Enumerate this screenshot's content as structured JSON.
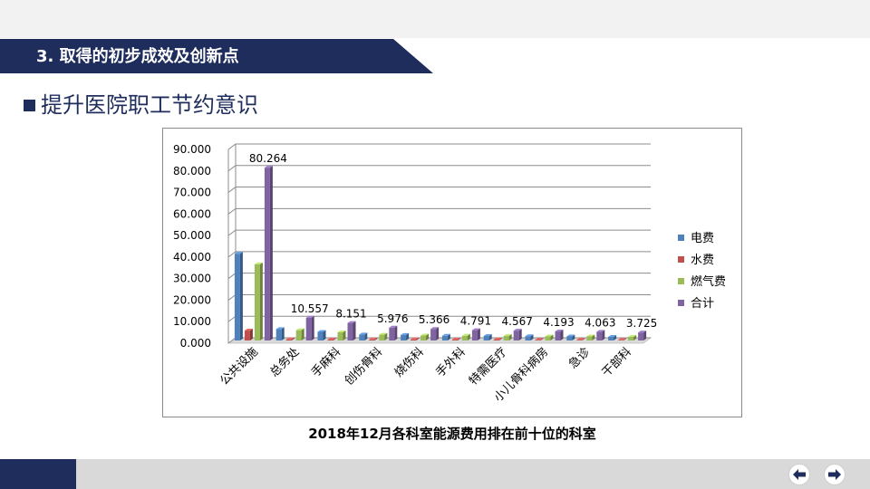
{
  "slide": {
    "title": "3. 取得的初步成效及创新点",
    "subheading": "提升医院职工节约意识",
    "caption": "2018年12月各科室能源费用排在前十位的科室"
  },
  "colors": {
    "brand_navy": "#1f2d5c",
    "electricity": "#4f81bd",
    "water": "#c0504d",
    "gas": "#9bbb59",
    "total": "#8064a2"
  },
  "nav": {
    "prev_icon": "arrow-left-icon",
    "next_icon": "arrow-right-icon"
  },
  "chart_data": {
    "type": "bar",
    "variant": "3d-clustered-column",
    "categories": [
      "公共设施",
      "总务处",
      "手麻科",
      "创伤骨科",
      "烧伤科",
      "手外科",
      "特需医疗",
      "小儿骨科病房",
      "急诊",
      "干部科"
    ],
    "series": [
      {
        "name": "电费",
        "values": [
          40.3,
          5.3,
          4.0,
          2.8,
          2.6,
          2.2,
          2.1,
          2.0,
          1.9,
          1.7
        ]
      },
      {
        "name": "水费",
        "values": [
          4.6,
          0.5,
          0.4,
          0.5,
          0.5,
          0.4,
          0.4,
          0.3,
          0.3,
          0.3
        ]
      },
      {
        "name": "燃气费",
        "values": [
          35.4,
          4.8,
          3.8,
          2.7,
          2.3,
          2.2,
          2.1,
          1.9,
          1.9,
          1.7
        ]
      },
      {
        "name": "合计",
        "values": [
          80.264,
          10.557,
          8.151,
          5.976,
          5.366,
          4.791,
          4.567,
          4.193,
          4.063,
          3.725
        ]
      }
    ],
    "data_labels": [
      "80.264",
      "10.557",
      "8.151",
      "5.976",
      "5.366",
      "4.791",
      "4.567",
      "4.193",
      "4.063",
      "3.725"
    ],
    "y_ticks": [
      "0.000",
      "10.000",
      "20.000",
      "30.000",
      "40.000",
      "50.000",
      "60.000",
      "70.000",
      "80.000",
      "90.000"
    ],
    "ylim": [
      0,
      90
    ],
    "title": "",
    "xlabel": "",
    "ylabel": "",
    "grid": true,
    "legend_position": "right"
  }
}
